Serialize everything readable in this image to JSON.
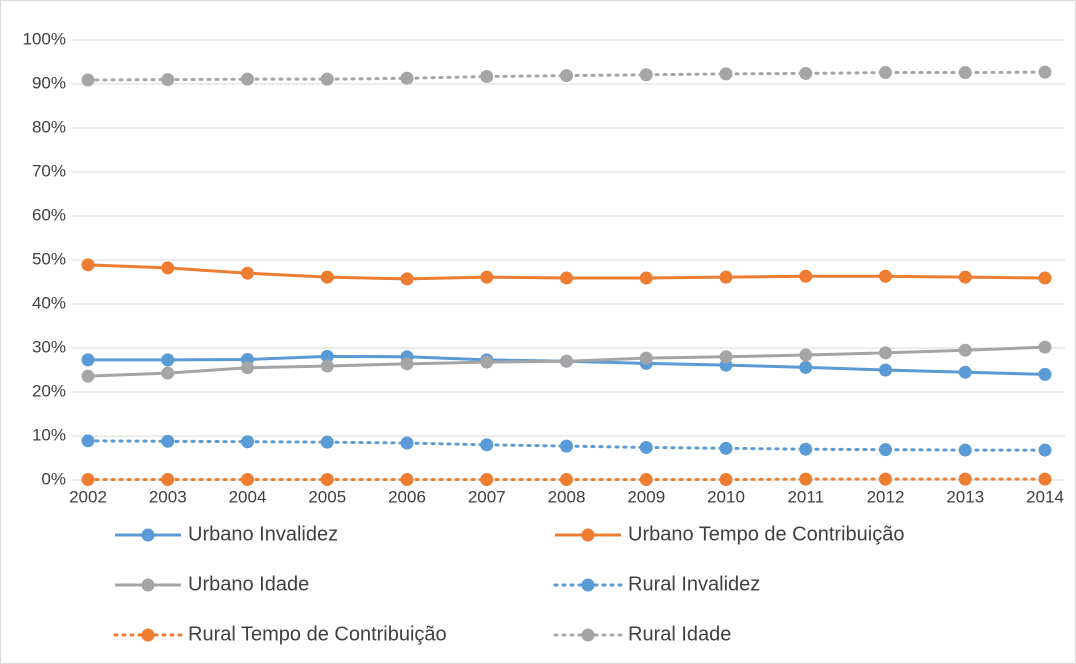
{
  "chart_data": {
    "type": "line",
    "categories": [
      "2002",
      "2003",
      "2004",
      "2005",
      "2006",
      "2007",
      "2008",
      "2009",
      "2010",
      "2011",
      "2012",
      "2013",
      "2014"
    ],
    "ylim": [
      0,
      100
    ],
    "yticks": [
      {
        "value": 0,
        "label": "0%"
      },
      {
        "value": 10,
        "label": "10%"
      },
      {
        "value": 20,
        "label": "20%"
      },
      {
        "value": 30,
        "label": "30%"
      },
      {
        "value": 40,
        "label": "40%"
      },
      {
        "value": 50,
        "label": "50%"
      },
      {
        "value": 60,
        "label": "60%"
      },
      {
        "value": 70,
        "label": "70%"
      },
      {
        "value": 80,
        "label": "80%"
      },
      {
        "value": 90,
        "label": "90%"
      },
      {
        "value": 100,
        "label": "100%"
      }
    ],
    "grid": true,
    "legend": "bottom",
    "series": [
      {
        "name": "Urbano Invalidez",
        "color": "#5b9bd5",
        "line_style": "solid",
        "values": [
          27.3,
          27.3,
          27.4,
          28.1,
          28.0,
          27.3,
          27.0,
          26.5,
          26.1,
          25.6,
          25.0,
          24.5,
          24.0
        ]
      },
      {
        "name": "Urbano Tempo de Contribuição",
        "color": "#ed7d31",
        "line_style": "solid",
        "values": [
          48.9,
          48.2,
          47.0,
          46.1,
          45.7,
          46.1,
          45.9,
          45.9,
          46.1,
          46.3,
          46.3,
          46.1,
          45.9
        ]
      },
      {
        "name": "Urbano Idade",
        "color": "#a5a5a5",
        "line_style": "solid",
        "values": [
          23.6,
          24.3,
          25.5,
          25.9,
          26.4,
          26.8,
          27.0,
          27.7,
          28.0,
          28.4,
          28.9,
          29.5,
          30.2
        ]
      },
      {
        "name": "Rural Invalidez",
        "color": "#5b9bd5",
        "line_style": "dotted",
        "values": [
          8.9,
          8.8,
          8.7,
          8.6,
          8.4,
          8.0,
          7.7,
          7.4,
          7.2,
          7.0,
          6.9,
          6.8,
          6.8
        ]
      },
      {
        "name": "Rural Tempo de Contribuição",
        "color": "#ed7d31",
        "line_style": "dotted",
        "values": [
          0.1,
          0.1,
          0.1,
          0.1,
          0.1,
          0.1,
          0.1,
          0.1,
          0.1,
          0.2,
          0.2,
          0.2,
          0.2
        ]
      },
      {
        "name": "Rural Idade",
        "color": "#a5a5a5",
        "line_style": "dotted",
        "values": [
          90.9,
          91.0,
          91.1,
          91.1,
          91.3,
          91.7,
          91.9,
          92.1,
          92.3,
          92.4,
          92.6,
          92.6,
          92.7
        ]
      }
    ]
  }
}
